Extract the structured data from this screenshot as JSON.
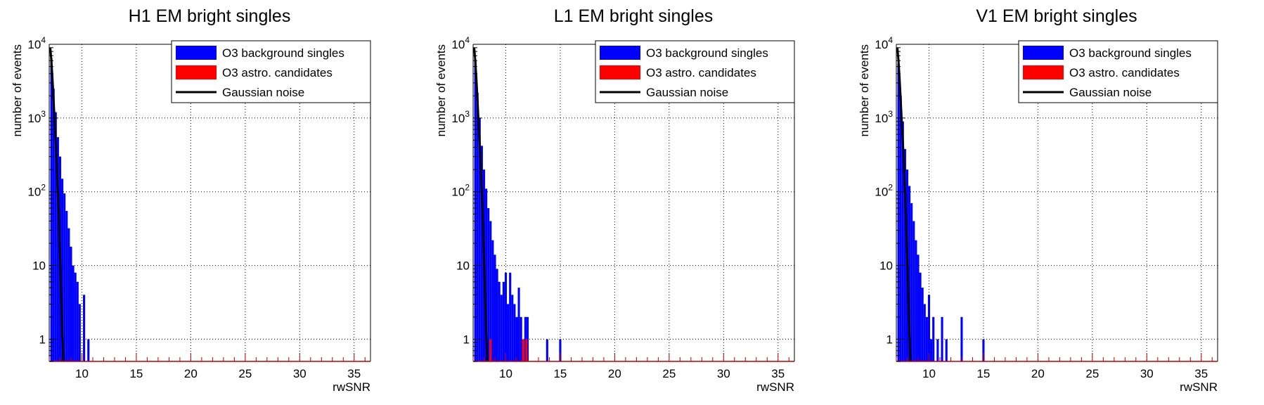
{
  "colors": {
    "background_series": "#0000ff",
    "astro_series": "#ff0000",
    "gaussian_series": "#000000",
    "axis": "#000000",
    "grid": "#000000",
    "x_axis_line": "#c00000"
  },
  "chart_data": [
    {
      "type": "histogram",
      "title": "H1 EM bright singles",
      "xlabel": "rwSNR",
      "ylabel": "number of events",
      "xlim": [
        7,
        36.5
      ],
      "ylim": [
        0.5,
        10000
      ],
      "yscale": "log",
      "grid": true,
      "legend_position": "top-right",
      "x_ticks": [
        10,
        15,
        20,
        25,
        30,
        35
      ],
      "y_ticks": [
        {
          "value": 1,
          "base": "1",
          "exp": ""
        },
        {
          "value": 10,
          "base": "10",
          "exp": ""
        },
        {
          "value": 100,
          "base": "10",
          "exp": "2"
        },
        {
          "value": 1000,
          "base": "10",
          "exp": "3"
        },
        {
          "value": 10000,
          "base": "10",
          "exp": "4"
        }
      ],
      "series": [
        {
          "name": "O3 background singles",
          "style": "fill",
          "x": [
            7.2,
            7.4,
            7.6,
            7.8,
            8.0,
            8.2,
            8.4,
            8.6,
            8.8,
            9.0,
            9.2,
            9.4,
            9.6,
            9.8,
            10.0,
            10.2,
            10.4,
            10.6
          ],
          "values": [
            6500,
            2500,
            1200,
            550,
            300,
            150,
            95,
            55,
            32,
            18,
            10,
            8,
            6,
            3,
            0,
            4,
            0,
            1
          ]
        },
        {
          "name": "O3 astro. candidates",
          "style": "fill",
          "x": [],
          "values": []
        },
        {
          "name": "Gaussian noise",
          "style": "line",
          "x": [
            7.1,
            7.2,
            7.3,
            7.4,
            7.5,
            7.6,
            7.7,
            7.8,
            7.9,
            8.0,
            8.1,
            8.2,
            8.3
          ],
          "values": [
            9000,
            6000,
            3500,
            1800,
            900,
            480,
            230,
            100,
            40,
            12,
            4,
            1.2,
            0.5
          ]
        }
      ]
    },
    {
      "type": "histogram",
      "title": "L1 EM bright singles",
      "xlabel": "rwSNR",
      "ylabel": "number of events",
      "xlim": [
        7,
        36.5
      ],
      "ylim": [
        0.5,
        10000
      ],
      "yscale": "log",
      "grid": true,
      "legend_position": "top-right",
      "x_ticks": [
        10,
        15,
        20,
        25,
        30,
        35
      ],
      "y_ticks": [
        {
          "value": 1,
          "base": "1",
          "exp": ""
        },
        {
          "value": 10,
          "base": "10",
          "exp": ""
        },
        {
          "value": 100,
          "base": "10",
          "exp": "2"
        },
        {
          "value": 1000,
          "base": "10",
          "exp": "3"
        },
        {
          "value": 10000,
          "base": "10",
          "exp": "4"
        }
      ],
      "series": [
        {
          "name": "O3 background singles",
          "style": "fill",
          "x": [
            7.2,
            7.4,
            7.6,
            7.8,
            8.0,
            8.2,
            8.4,
            8.6,
            8.8,
            9.0,
            9.2,
            9.4,
            9.6,
            9.8,
            10.0,
            10.2,
            10.4,
            10.6,
            10.8,
            11.0,
            11.2,
            11.4,
            11.6,
            11.8,
            12.0,
            12.2,
            12.4,
            12.6,
            12.8,
            13.0,
            13.2,
            13.4,
            13.6,
            13.8,
            14.0,
            14.2,
            14.4,
            14.6,
            14.8,
            15.0,
            15.2
          ],
          "values": [
            6000,
            2200,
            1000,
            420,
            200,
            110,
            60,
            40,
            22,
            14,
            9,
            6,
            4,
            6,
            8,
            3,
            8,
            4,
            3,
            2,
            5,
            2,
            1,
            2,
            2,
            0,
            0,
            0,
            0,
            0,
            0,
            0,
            0,
            1,
            0,
            0,
            0,
            0,
            0,
            1,
            0
          ]
        },
        {
          "name": "O3 astro. candidates",
          "style": "fill",
          "x": [
            8.6,
            11.6,
            11.9
          ],
          "values": [
            1,
            1,
            1
          ]
        },
        {
          "name": "Gaussian noise",
          "style": "line",
          "x": [
            7.1,
            7.2,
            7.3,
            7.4,
            7.5,
            7.6,
            7.7,
            7.8,
            7.9,
            8.0,
            8.1,
            8.2,
            8.3
          ],
          "values": [
            9000,
            6000,
            3500,
            1800,
            900,
            480,
            230,
            100,
            40,
            12,
            4,
            1.2,
            0.5
          ]
        }
      ]
    },
    {
      "type": "histogram",
      "title": "V1 EM bright singles",
      "xlabel": "rwSNR",
      "ylabel": "number of events",
      "xlim": [
        7,
        36.5
      ],
      "ylim": [
        0.5,
        10000
      ],
      "yscale": "log",
      "grid": true,
      "legend_position": "top-right",
      "x_ticks": [
        10,
        15,
        20,
        25,
        30,
        35
      ],
      "y_ticks": [
        {
          "value": 1,
          "base": "1",
          "exp": ""
        },
        {
          "value": 10,
          "base": "10",
          "exp": ""
        },
        {
          "value": 100,
          "base": "10",
          "exp": "2"
        },
        {
          "value": 1000,
          "base": "10",
          "exp": "3"
        },
        {
          "value": 10000,
          "base": "10",
          "exp": "4"
        }
      ],
      "series": [
        {
          "name": "O3 background singles",
          "style": "fill",
          "x": [
            7.2,
            7.4,
            7.6,
            7.8,
            8.0,
            8.2,
            8.4,
            8.6,
            8.8,
            9.0,
            9.2,
            9.4,
            9.6,
            9.8,
            10.0,
            10.2,
            10.4,
            10.6,
            10.8,
            11.0,
            11.2,
            11.4,
            11.6,
            11.8,
            12.0,
            12.2,
            12.4,
            12.6,
            12.8,
            13.0,
            13.2,
            13.4,
            13.6,
            13.8,
            14.0,
            14.2,
            14.4,
            14.6,
            14.8,
            15.0
          ],
          "values": [
            5500,
            2000,
            900,
            380,
            200,
            120,
            70,
            40,
            22,
            14,
            8,
            5,
            3,
            2,
            4,
            1,
            2,
            0,
            1,
            0,
            2,
            0,
            1,
            0,
            0,
            0,
            0,
            0,
            0,
            2,
            0,
            0,
            0,
            0,
            0,
            0,
            0,
            0,
            0,
            1
          ]
        },
        {
          "name": "O3 astro. candidates",
          "style": "fill",
          "x": [],
          "values": []
        },
        {
          "name": "Gaussian noise",
          "style": "line",
          "x": [
            7.1,
            7.2,
            7.3,
            7.4,
            7.5,
            7.6,
            7.7,
            7.8,
            7.9,
            8.0,
            8.1,
            8.2,
            8.3
          ],
          "values": [
            9000,
            6000,
            3500,
            1800,
            900,
            480,
            230,
            100,
            40,
            12,
            4,
            1.2,
            0.5
          ]
        }
      ]
    }
  ]
}
